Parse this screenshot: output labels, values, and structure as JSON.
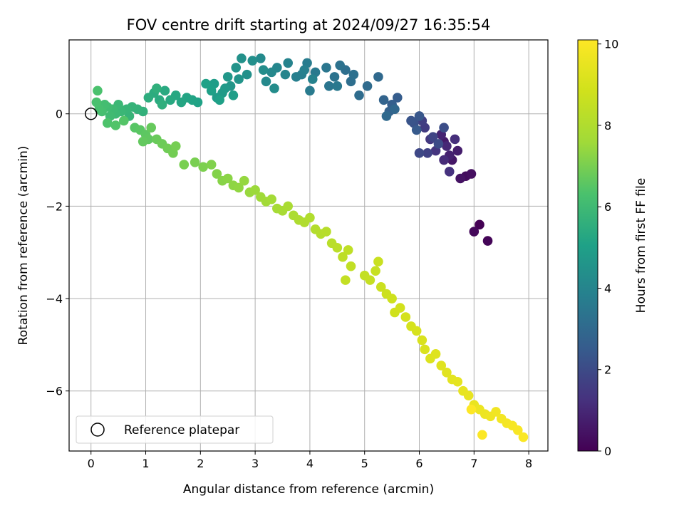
{
  "chart_data": {
    "type": "scatter",
    "title": "FOV centre drift starting at 2024/09/27 16:35:54",
    "xlabel": "Angular distance from reference (arcmin)",
    "ylabel": "Rotation from reference (arcmin)",
    "xlim": [
      -0.4,
      8.35
    ],
    "ylim": [
      -7.3,
      1.6
    ],
    "xticks": [
      0,
      1,
      2,
      3,
      4,
      5,
      6,
      7,
      8
    ],
    "yticks": [
      0,
      -2,
      -4,
      -6
    ],
    "grid": true,
    "colormap": "viridis",
    "colorbar": {
      "label": "Hours from first FF file",
      "range": [
        0,
        10.1
      ],
      "ticks": [
        0,
        2,
        4,
        6,
        8,
        10
      ]
    },
    "legend": {
      "placement": "lower-left",
      "entries": [
        "Reference platepar"
      ]
    },
    "reference_point": {
      "x": 0,
      "y": 0
    },
    "series": [
      {
        "hours_range": [
          0.0,
          3.0
        ],
        "points": [
          [
            7.1,
            -2.4
          ],
          [
            7.25,
            -2.75
          ],
          [
            7.0,
            -2.55
          ],
          [
            6.85,
            -1.35
          ],
          [
            6.95,
            -1.3
          ],
          [
            6.75,
            -1.4
          ],
          [
            6.6,
            -1.0
          ],
          [
            6.45,
            -0.6
          ],
          [
            6.7,
            -0.8
          ],
          [
            6.55,
            -0.9
          ],
          [
            6.4,
            -0.45
          ],
          [
            6.5,
            -0.7
          ],
          [
            6.45,
            -1.0
          ],
          [
            6.65,
            -0.55
          ],
          [
            6.55,
            -1.25
          ],
          [
            6.3,
            -0.8
          ],
          [
            6.2,
            -0.55
          ],
          [
            6.1,
            -0.3
          ],
          [
            6.05,
            -0.15
          ],
          [
            6.15,
            -0.85
          ],
          [
            6.25,
            -0.5
          ],
          [
            6.0,
            -0.85
          ],
          [
            6.35,
            -0.65
          ],
          [
            6.45,
            -0.3
          ],
          [
            5.9,
            -0.2
          ],
          [
            5.85,
            -0.15
          ],
          [
            6.0,
            -0.05
          ],
          [
            5.95,
            -0.35
          ],
          [
            5.6,
            0.35
          ],
          [
            5.5,
            0.2
          ],
          [
            5.45,
            0.05
          ],
          [
            5.35,
            0.3
          ],
          [
            5.55,
            0.1
          ],
          [
            5.4,
            -0.05
          ]
        ]
      },
      {
        "hours_range": [
          3.0,
          5.0
        ],
        "points": [
          [
            5.25,
            0.8
          ],
          [
            5.05,
            0.6
          ],
          [
            4.9,
            0.4
          ],
          [
            4.75,
            0.7
          ],
          [
            4.65,
            0.95
          ],
          [
            4.8,
            0.85
          ],
          [
            4.55,
            1.05
          ],
          [
            4.45,
            0.8
          ],
          [
            4.35,
            0.6
          ],
          [
            4.3,
            1.0
          ],
          [
            4.5,
            0.6
          ],
          [
            4.1,
            0.9
          ],
          [
            4.0,
            0.5
          ],
          [
            3.95,
            1.1
          ],
          [
            3.85,
            0.85
          ],
          [
            3.75,
            0.8
          ],
          [
            3.9,
            0.95
          ],
          [
            4.05,
            0.75
          ],
          [
            3.6,
            1.1
          ],
          [
            3.55,
            0.85
          ],
          [
            3.4,
            1.0
          ],
          [
            3.3,
            0.9
          ],
          [
            3.2,
            0.7
          ],
          [
            3.1,
            1.2
          ],
          [
            3.35,
            0.55
          ],
          [
            3.15,
            0.95
          ],
          [
            2.95,
            1.15
          ],
          [
            2.85,
            0.85
          ],
          [
            2.75,
            1.2
          ],
          [
            2.65,
            1.0
          ],
          [
            2.7,
            0.75
          ],
          [
            2.55,
            0.6
          ],
          [
            2.5,
            0.8
          ],
          [
            2.45,
            0.55
          ],
          [
            2.4,
            0.45
          ],
          [
            2.3,
            0.35
          ],
          [
            2.25,
            0.65
          ],
          [
            2.6,
            0.4
          ],
          [
            2.35,
            0.3
          ]
        ]
      },
      {
        "hours_range": [
          5.0,
          7.0
        ],
        "points": [
          [
            2.2,
            0.5
          ],
          [
            2.1,
            0.65
          ],
          [
            1.95,
            0.25
          ],
          [
            1.85,
            0.3
          ],
          [
            1.75,
            0.35
          ],
          [
            1.65,
            0.25
          ],
          [
            1.55,
            0.4
          ],
          [
            1.45,
            0.3
          ],
          [
            1.35,
            0.5
          ],
          [
            1.25,
            0.3
          ],
          [
            1.15,
            0.45
          ],
          [
            1.05,
            0.35
          ],
          [
            1.3,
            0.2
          ],
          [
            1.2,
            0.55
          ],
          [
            0.95,
            0.05
          ],
          [
            0.85,
            0.1
          ],
          [
            0.75,
            0.15
          ],
          [
            0.7,
            -0.05
          ],
          [
            0.65,
            0.1
          ],
          [
            0.55,
            0.05
          ],
          [
            0.5,
            0.2
          ],
          [
            0.45,
            0.0
          ],
          [
            0.4,
            0.1
          ],
          [
            0.35,
            -0.05
          ],
          [
            0.3,
            0.15
          ],
          [
            0.25,
            0.2
          ],
          [
            0.2,
            0.05
          ],
          [
            0.15,
            0.1
          ],
          [
            0.1,
            0.25
          ],
          [
            0.12,
            0.5
          ],
          [
            0.3,
            -0.2
          ],
          [
            0.45,
            -0.25
          ],
          [
            0.6,
            -0.15
          ],
          [
            0.8,
            -0.3
          ],
          [
            0.9,
            -0.35
          ],
          [
            1.0,
            -0.45
          ],
          [
            1.05,
            -0.55
          ],
          [
            0.95,
            -0.6
          ],
          [
            1.1,
            -0.3
          ],
          [
            1.2,
            -0.55
          ],
          [
            1.3,
            -0.65
          ],
          [
            1.4,
            -0.75
          ],
          [
            1.5,
            -0.85
          ],
          [
            1.55,
            -0.7
          ],
          [
            1.7,
            -1.1
          ]
        ]
      },
      {
        "hours_range": [
          7.0,
          8.5
        ],
        "points": [
          [
            1.9,
            -1.05
          ],
          [
            2.05,
            -1.15
          ],
          [
            2.2,
            -1.1
          ],
          [
            2.3,
            -1.3
          ],
          [
            2.4,
            -1.45
          ],
          [
            2.5,
            -1.4
          ],
          [
            2.6,
            -1.55
          ],
          [
            2.7,
            -1.6
          ],
          [
            2.8,
            -1.45
          ],
          [
            2.9,
            -1.7
          ],
          [
            3.0,
            -1.65
          ],
          [
            3.1,
            -1.8
          ],
          [
            3.2,
            -1.9
          ],
          [
            3.3,
            -1.85
          ],
          [
            3.4,
            -2.05
          ],
          [
            3.5,
            -2.1
          ],
          [
            3.6,
            -2.0
          ],
          [
            3.7,
            -2.2
          ],
          [
            3.8,
            -2.3
          ],
          [
            3.9,
            -2.35
          ],
          [
            4.0,
            -2.25
          ],
          [
            4.1,
            -2.5
          ],
          [
            4.2,
            -2.6
          ],
          [
            4.3,
            -2.55
          ],
          [
            4.4,
            -2.8
          ],
          [
            4.5,
            -2.9
          ],
          [
            4.6,
            -3.1
          ],
          [
            4.7,
            -2.95
          ],
          [
            4.75,
            -3.3
          ],
          [
            4.65,
            -3.6
          ]
        ]
      },
      {
        "hours_range": [
          8.5,
          10.1
        ],
        "points": [
          [
            5.0,
            -3.5
          ],
          [
            5.1,
            -3.6
          ],
          [
            5.2,
            -3.4
          ],
          [
            5.25,
            -3.2
          ],
          [
            5.3,
            -3.75
          ],
          [
            5.4,
            -3.9
          ],
          [
            5.5,
            -4.0
          ],
          [
            5.55,
            -4.3
          ],
          [
            5.65,
            -4.2
          ],
          [
            5.75,
            -4.4
          ],
          [
            5.85,
            -4.6
          ],
          [
            5.95,
            -4.7
          ],
          [
            6.05,
            -4.9
          ],
          [
            6.1,
            -5.1
          ],
          [
            6.2,
            -5.3
          ],
          [
            6.3,
            -5.2
          ],
          [
            6.4,
            -5.45
          ],
          [
            6.5,
            -5.6
          ],
          [
            6.6,
            -5.75
          ],
          [
            6.7,
            -5.8
          ],
          [
            6.8,
            -6.0
          ],
          [
            6.9,
            -6.1
          ],
          [
            7.0,
            -6.3
          ],
          [
            7.1,
            -6.4
          ],
          [
            7.2,
            -6.5
          ],
          [
            7.3,
            -6.55
          ],
          [
            7.4,
            -6.45
          ],
          [
            7.5,
            -6.6
          ],
          [
            7.6,
            -6.7
          ],
          [
            7.7,
            -6.75
          ],
          [
            7.8,
            -6.85
          ],
          [
            7.9,
            -7.0
          ],
          [
            7.15,
            -6.95
          ],
          [
            6.95,
            -6.4
          ]
        ]
      }
    ]
  }
}
